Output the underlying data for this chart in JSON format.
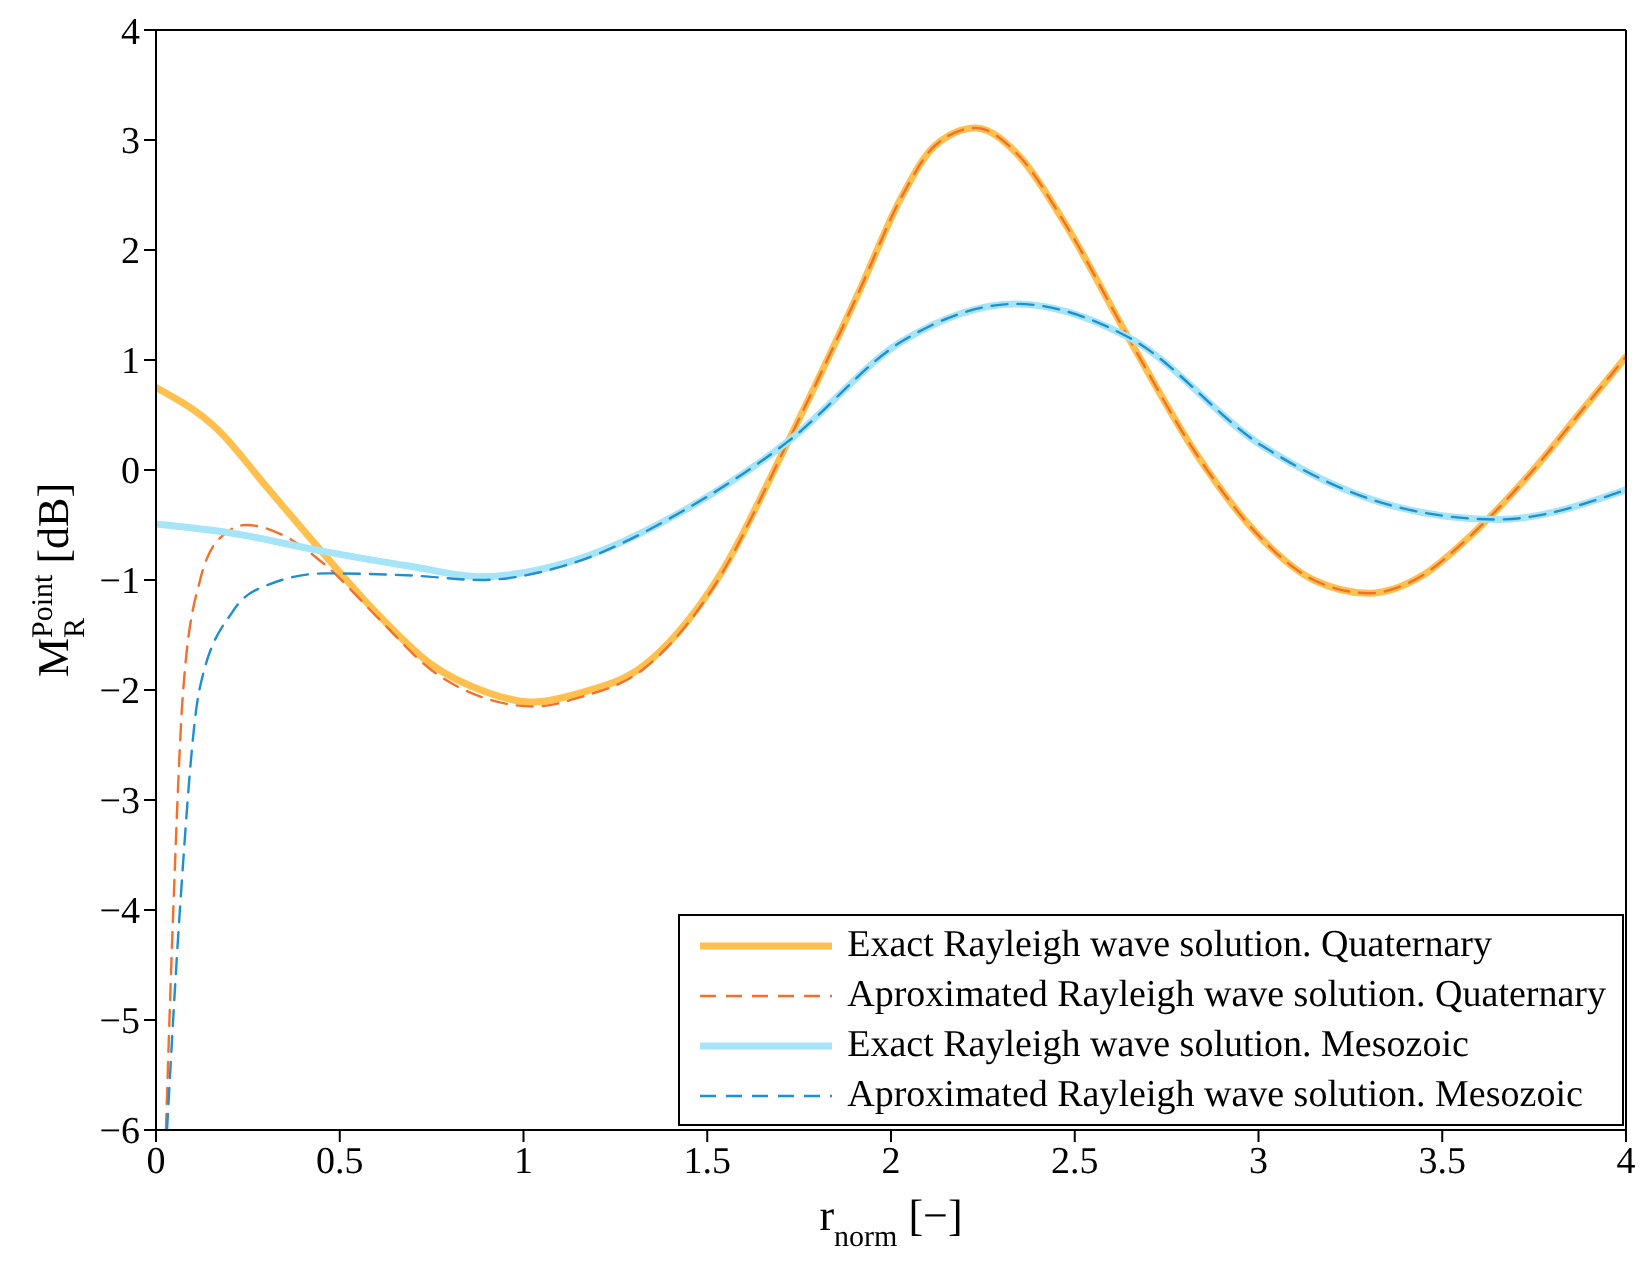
{
  "chart_data": {
    "type": "line",
    "xlabel": "r$_{norm}$ [−]",
    "ylabel": "M$_{R}$$^{Point}$ [dB]",
    "xlim": [
      0,
      4
    ],
    "xticks": [
      0,
      0.5,
      1,
      1.5,
      2,
      2.5,
      3,
      3.5,
      4
    ],
    "ylim": [
      -6,
      4
    ],
    "yticks": [
      -6,
      -5,
      -4,
      -3,
      -2,
      -1,
      0,
      1,
      2,
      3,
      4
    ],
    "grid": false,
    "legend": "bottom right",
    "marker": "none",
    "series": [
      {
        "name": "Exact Rayleigh wave solution. Quaternary",
        "color": "#ffc04d",
        "line_style": "solid",
        "x": [
          0,
          0.167,
          0.3,
          0.456,
          0.6,
          0.75,
          0.9,
          1.02,
          1.15,
          1.33,
          1.52,
          1.72,
          1.91,
          2.03,
          2.12,
          2.23,
          2.35,
          2.47,
          2.65,
          2.83,
          3.01,
          3.15,
          3.3,
          3.45,
          3.55,
          3.74,
          3.87,
          4.0
        ],
        "values": [
          0.75,
          0.37,
          -0.15,
          -0.76,
          -1.3,
          -1.77,
          -2.02,
          -2.11,
          -2.03,
          -1.77,
          -1.03,
          0.26,
          1.6,
          2.49,
          2.95,
          3.11,
          2.85,
          2.26,
          1.18,
          0.15,
          -0.63,
          -1.0,
          -1.12,
          -0.95,
          -0.68,
          -0.03,
          0.5,
          1.03
        ]
      },
      {
        "name": "Aproximated Rayleigh wave solution. Quaternary",
        "color": "#f4702a",
        "line_style": "dashed",
        "x": [
          0.027,
          0.047,
          0.074,
          0.12,
          0.18,
          0.245,
          0.35,
          0.456,
          0.6,
          0.75,
          0.9,
          1.03,
          1.15,
          1.33,
          1.52,
          1.72,
          1.91,
          2.03,
          2.12,
          2.23,
          2.35,
          2.47,
          2.65,
          2.83,
          3.01,
          3.15,
          3.3,
          3.45,
          3.55,
          3.74,
          3.87,
          4.0
        ],
        "values": [
          -6,
          -4,
          -2,
          -1,
          -0.6,
          -0.5,
          -0.6,
          -0.85,
          -1.33,
          -1.82,
          -2.08,
          -2.15,
          -2.07,
          -1.8,
          -1.05,
          0.26,
          1.6,
          2.49,
          2.95,
          3.11,
          2.85,
          2.26,
          1.18,
          0.15,
          -0.63,
          -1.0,
          -1.12,
          -0.95,
          -0.68,
          -0.03,
          0.5,
          1.03
        ]
      },
      {
        "name": "Exact Rayleigh wave solution. Mesozoic",
        "color": "#a6e4f8",
        "line_style": "solid",
        "x": [
          0,
          0.2,
          0.456,
          0.7,
          0.885,
          1.13,
          1.43,
          1.72,
          2.03,
          2.34,
          2.65,
          3.01,
          3.37,
          3.65,
          4.0
        ],
        "values": [
          -0.49,
          -0.57,
          -0.74,
          -0.88,
          -0.97,
          -0.83,
          -0.38,
          0.26,
          1.17,
          1.51,
          1.2,
          0.22,
          -0.33,
          -0.45,
          -0.18
        ]
      },
      {
        "name": "Aproximated Rayleigh wave solution. Mesozoic",
        "color": "#1f8fd0",
        "line_style": "dashed",
        "x": [
          0.03,
          0.065,
          0.118,
          0.21,
          0.3,
          0.46,
          0.7,
          0.885,
          1.13,
          1.43,
          1.72,
          2.03,
          2.34,
          2.65,
          3.01,
          3.37,
          3.65,
          4.0
        ],
        "values": [
          -6,
          -4,
          -2,
          -1.28,
          -1.05,
          -0.94,
          -0.96,
          -1.0,
          -0.85,
          -0.38,
          0.26,
          1.17,
          1.51,
          1.2,
          0.22,
          -0.33,
          -0.45,
          -0.18
        ]
      }
    ]
  }
}
